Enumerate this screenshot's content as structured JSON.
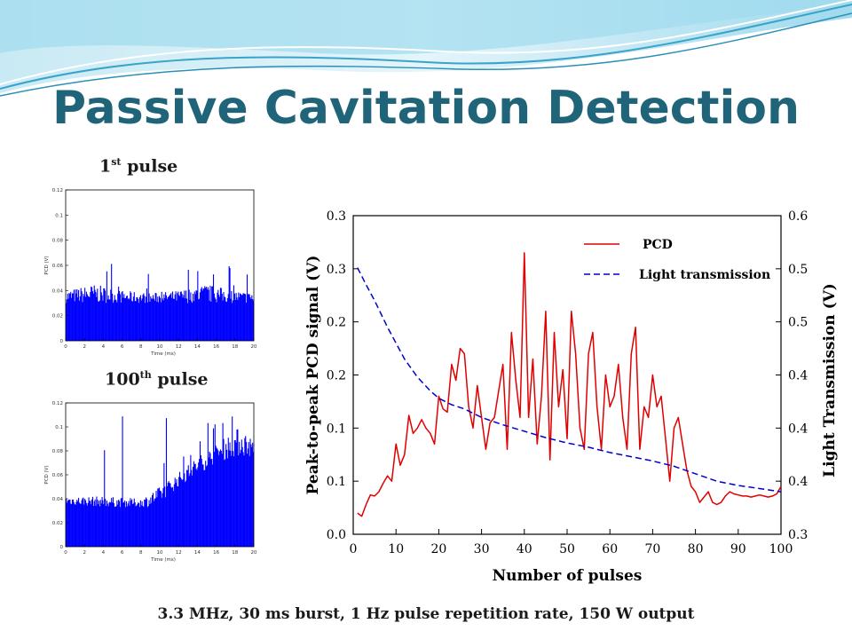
{
  "title": "Passive Cavitation Detection",
  "first_pulse": {
    "num": "1",
    "sup": "st",
    "word": "pulse"
  },
  "hundredth_pulse": {
    "num": "100",
    "sup": "th",
    "word": "pulse"
  },
  "footer": "3.3 MHz, 30 ms burst, 1 Hz pulse repetition rate, 150 W output",
  "colors": {
    "title": "#1f6478",
    "pcd": "#e00000",
    "light": "#0000cc",
    "small_plot": "#0000ff"
  },
  "chart_data": [
    {
      "type": "bar",
      "name": "1st pulse",
      "xlabel": "Time (ms)",
      "ylabel": "PCD (V)",
      "xlim": [
        0,
        20
      ],
      "ylim": [
        0,
        0.12
      ],
      "x_ticks": [
        "0",
        "2",
        "4",
        "6",
        "8",
        "10",
        "12",
        "14",
        "16",
        "18",
        "20"
      ],
      "y_ticks": [
        "0",
        "0.02",
        "0.04",
        "0.06",
        "0.08",
        "0.1",
        "0.12"
      ],
      "baseline": 0.03,
      "envelope_x": [
        0,
        3,
        6,
        9,
        12,
        15,
        18,
        20
      ],
      "envelope_y": [
        0.04,
        0.045,
        0.04,
        0.038,
        0.04,
        0.045,
        0.04,
        0.038
      ],
      "peak_max": 0.063
    },
    {
      "type": "bar",
      "name": "100th pulse",
      "xlabel": "Time (ms)",
      "ylabel": "PCD (V)",
      "xlim": [
        0,
        20
      ],
      "ylim": [
        0,
        0.12
      ],
      "x_ticks": [
        "0",
        "2",
        "4",
        "6",
        "8",
        "10",
        "12",
        "14",
        "16",
        "18",
        "20"
      ],
      "y_ticks": [
        "0",
        "0.02",
        "0.04",
        "0.06",
        "0.08",
        "0.1",
        "0.12"
      ],
      "baseline_x": [
        0,
        5,
        9,
        10.5,
        12,
        14,
        16,
        18,
        20
      ],
      "baseline_y": [
        0.035,
        0.033,
        0.033,
        0.04,
        0.05,
        0.06,
        0.07,
        0.075,
        0.075
      ],
      "envelope_x": [
        0,
        4,
        8,
        10,
        12,
        14,
        16,
        17.5,
        18.5,
        20
      ],
      "envelope_y": [
        0.042,
        0.042,
        0.04,
        0.05,
        0.062,
        0.075,
        0.085,
        0.095,
        0.1,
        0.09
      ],
      "peak_max": 0.11
    },
    {
      "type": "line",
      "xlabel": "Number of pulses",
      "ylabel": "Peak-to-peak PCD signal (V)",
      "y2label": "Light Transmission (V)",
      "xlim": [
        0,
        100
      ],
      "ylim": [
        0,
        0.3
      ],
      "y2lim": [
        0.3,
        0.6
      ],
      "x_ticks": [
        "0",
        "10",
        "20",
        "30",
        "40",
        "50",
        "60",
        "70",
        "80",
        "90",
        "100"
      ],
      "y_ticks": [
        "0.0",
        "0.1",
        "0.1",
        "0.2",
        "0.2",
        "0.3",
        "0.3"
      ],
      "y2_ticks": [
        "0.3",
        "0.4",
        "0.4",
        "0.4",
        "0.5",
        "0.5",
        "0.6"
      ],
      "legend_position": "top-right",
      "series": [
        {
          "name": "PCD",
          "axis": "left",
          "style": "solid",
          "x": [
            1,
            2,
            3,
            4,
            5,
            6,
            7,
            8,
            9,
            10,
            11,
            12,
            13,
            14,
            15,
            16,
            17,
            18,
            19,
            20,
            21,
            22,
            23,
            24,
            25,
            26,
            27,
            28,
            29,
            30,
            31,
            32,
            33,
            34,
            35,
            36,
            37,
            38,
            39,
            40,
            41,
            42,
            43,
            44,
            45,
            46,
            47,
            48,
            49,
            50,
            51,
            52,
            53,
            54,
            55,
            56,
            57,
            58,
            59,
            60,
            61,
            62,
            63,
            64,
            65,
            66,
            67,
            68,
            69,
            70,
            71,
            72,
            73,
            74,
            75,
            76,
            77,
            78,
            79,
            80,
            81,
            82,
            83,
            84,
            85,
            86,
            87,
            88,
            89,
            90,
            91,
            92,
            93,
            94,
            95,
            96,
            97,
            98,
            99,
            100
          ],
          "y": [
            0.02,
            0.017,
            0.028,
            0.037,
            0.036,
            0.04,
            0.048,
            0.055,
            0.05,
            0.085,
            0.065,
            0.075,
            0.112,
            0.095,
            0.1,
            0.108,
            0.1,
            0.095,
            0.085,
            0.13,
            0.118,
            0.115,
            0.16,
            0.145,
            0.175,
            0.17,
            0.12,
            0.1,
            0.14,
            0.11,
            0.08,
            0.105,
            0.11,
            0.135,
            0.16,
            0.08,
            0.19,
            0.145,
            0.11,
            0.265,
            0.11,
            0.165,
            0.085,
            0.13,
            0.21,
            0.07,
            0.19,
            0.12,
            0.155,
            0.09,
            0.21,
            0.17,
            0.1,
            0.08,
            0.17,
            0.19,
            0.12,
            0.08,
            0.15,
            0.12,
            0.13,
            0.16,
            0.11,
            0.08,
            0.17,
            0.195,
            0.08,
            0.12,
            0.11,
            0.15,
            0.12,
            0.13,
            0.09,
            0.05,
            0.1,
            0.11,
            0.085,
            0.06,
            0.045,
            0.04,
            0.03,
            0.035,
            0.04,
            0.03,
            0.028,
            0.03,
            0.036,
            0.04,
            0.038,
            0.037,
            0.036,
            0.036,
            0.035,
            0.036,
            0.037,
            0.036,
            0.035,
            0.036,
            0.038,
            0.045
          ]
        },
        {
          "name": "Light transmission",
          "axis": "right",
          "style": "dashed",
          "x": [
            1,
            3,
            5,
            8,
            10,
            12,
            15,
            18,
            20,
            23,
            26,
            30,
            35,
            40,
            45,
            50,
            55,
            60,
            65,
            70,
            75,
            80,
            85,
            90,
            95,
            100
          ],
          "y": [
            0.551,
            0.535,
            0.52,
            0.495,
            0.48,
            0.465,
            0.448,
            0.435,
            0.428,
            0.422,
            0.418,
            0.41,
            0.403,
            0.397,
            0.391,
            0.386,
            0.382,
            0.377,
            0.373,
            0.369,
            0.364,
            0.357,
            0.35,
            0.346,
            0.343,
            0.34
          ]
        }
      ]
    }
  ]
}
